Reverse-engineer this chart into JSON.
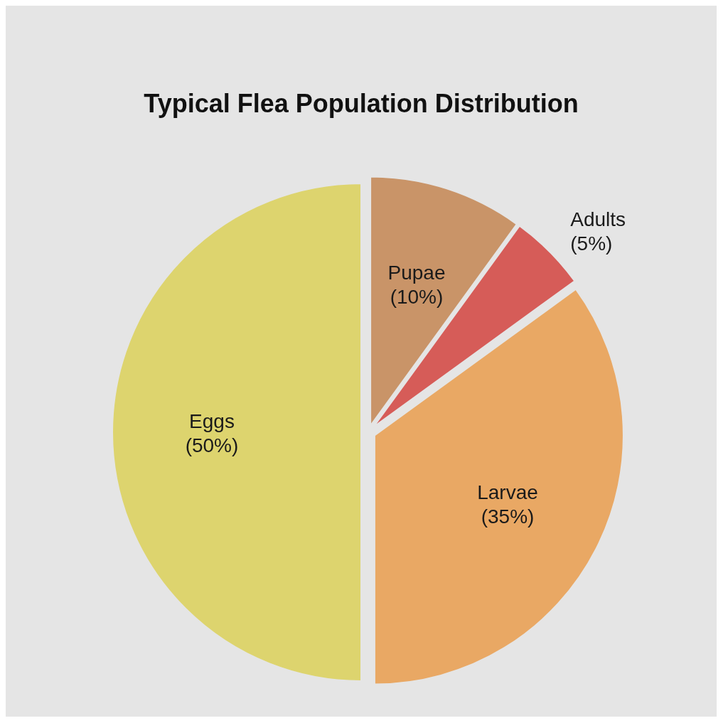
{
  "chart_data": {
    "type": "pie",
    "title": "Typical Flea Population Distribution",
    "categories": [
      "Pupae",
      "Adults",
      "Larvae",
      "Eggs"
    ],
    "values": [
      10,
      5,
      35,
      50
    ],
    "value_labels": [
      "(10%)",
      "(5%)",
      "(35%)",
      "(50%)"
    ],
    "colors": [
      "#c99468",
      "#d65c58",
      "#e9a864",
      "#ddd46e"
    ]
  }
}
